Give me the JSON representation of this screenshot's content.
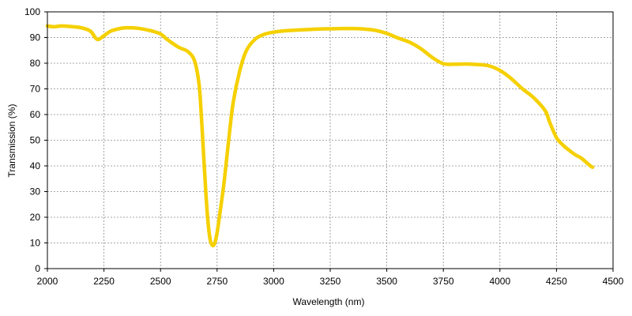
{
  "chart_data": {
    "type": "line",
    "title": "",
    "xlabel": "Wavelength (nm)",
    "ylabel": "Transmission (%)",
    "xlim": [
      2000,
      4500
    ],
    "ylim": [
      0,
      100
    ],
    "x_ticks": [
      "2000",
      "2250",
      "2500",
      "2750",
      "3000",
      "3250",
      "3500",
      "3750",
      "4000",
      "4250",
      "4500"
    ],
    "y_ticks": [
      "0",
      "10",
      "20",
      "30",
      "40",
      "50",
      "60",
      "70",
      "80",
      "90",
      "100"
    ],
    "grid": true,
    "legend": "none",
    "series": [
      {
        "color": "#f5d000",
        "x": [
          2000,
          2030,
          2060,
          2100,
          2150,
          2190,
          2220,
          2250,
          2280,
          2320,
          2350,
          2400,
          2450,
          2500,
          2530,
          2580,
          2620,
          2650,
          2670,
          2680,
          2690,
          2700,
          2710,
          2720,
          2730,
          2740,
          2750,
          2760,
          2780,
          2800,
          2820,
          2850,
          2880,
          2920,
          2960,
          3000,
          3050,
          3100,
          3150,
          3200,
          3250,
          3300,
          3350,
          3400,
          3450,
          3500,
          3550,
          3600,
          3650,
          3700,
          3750,
          3800,
          3850,
          3900,
          3950,
          4000,
          4050,
          4100,
          4150,
          4200,
          4220,
          4250,
          4280,
          4300,
          4330,
          4360,
          4400,
          4410
        ],
        "y": [
          94.5,
          94.2,
          94.5,
          94.3,
          93.8,
          92.5,
          89.3,
          90.7,
          92.5,
          93.5,
          93.8,
          93.6,
          92.8,
          91.4,
          89.2,
          86.2,
          84.6,
          81,
          72,
          60,
          45,
          30,
          18,
          11,
          9,
          10,
          14,
          20,
          33,
          49,
          64,
          77,
          85,
          89.5,
          91.3,
          92.1,
          92.6,
          92.9,
          93.1,
          93.3,
          93.4,
          93.5,
          93.5,
          93.3,
          92.8,
          91.6,
          89.8,
          88.2,
          85.7,
          82.3,
          79.8,
          79.6,
          79.7,
          79.5,
          79,
          77.2,
          74,
          70,
          66.5,
          61.5,
          57,
          51,
          48,
          46.5,
          44.5,
          43,
          40,
          39.5
        ]
      }
    ]
  }
}
